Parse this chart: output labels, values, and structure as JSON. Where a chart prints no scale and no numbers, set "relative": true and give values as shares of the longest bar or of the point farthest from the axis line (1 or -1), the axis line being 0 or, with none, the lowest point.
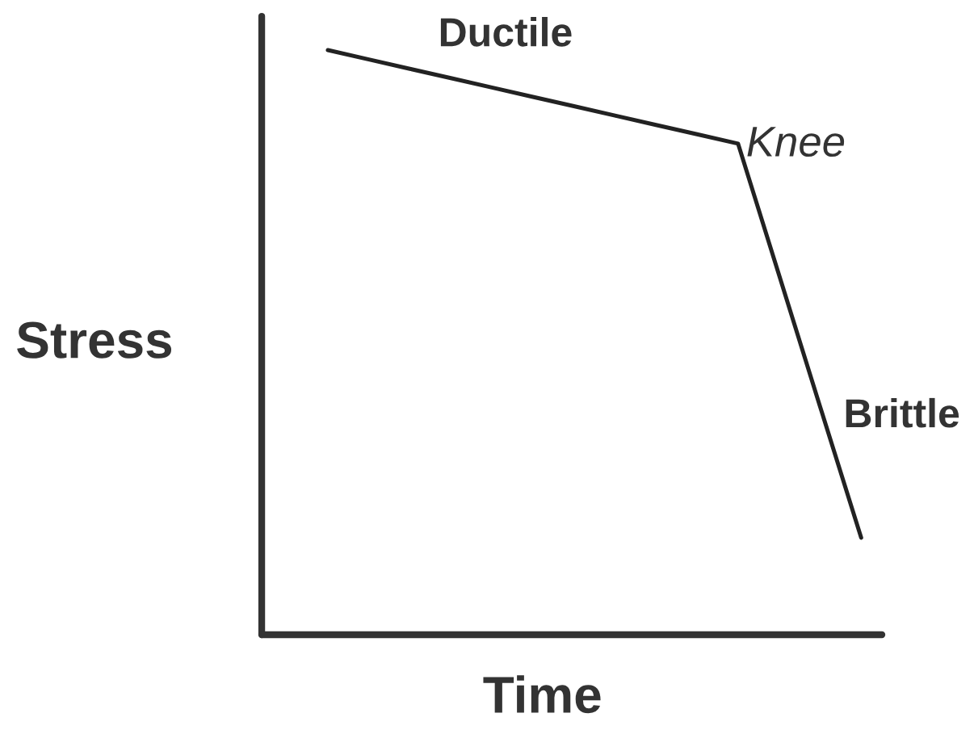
{
  "chart_data": {
    "type": "line",
    "relative": true,
    "xlabel": "Time",
    "ylabel": "Stress",
    "categories": [
      null,
      null,
      null,
      null,
      null,
      null,
      null,
      null,
      null,
      null,
      null,
      null,
      null,
      null
    ],
    "series": [
      {
        "color": "#222222",
        "values": [
          1.0,
          0.984,
          0.968,
          0.952,
          0.936,
          0.92,
          0.904,
          0.888,
          0.872,
          0.856,
          0.84,
          0.615,
          0.39,
          0.166
        ]
      }
    ],
    "annotations": [
      "Ductile",
      "Knee",
      "Brittle"
    ],
    "marker": "none",
    "line_style": "solid"
  }
}
